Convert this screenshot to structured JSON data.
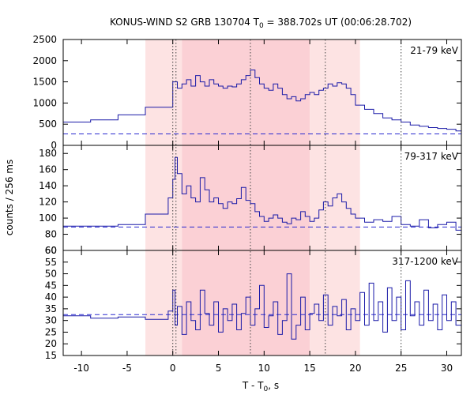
{
  "chart_data": {
    "type": "line",
    "title": {
      "prefix": "KONUS-WIND S2 GRB 130704 T",
      "subscript": "0",
      "suffix": " = 388.702s UT (00:06:28.702)"
    },
    "xlabel": {
      "prefix": "T - T",
      "subscript": "0",
      "suffix": ", s"
    },
    "ylabel": "counts / 256 ms",
    "xlim": [
      -12,
      31.6
    ],
    "x_ticks": [
      -10,
      -5,
      0,
      5,
      10,
      15,
      20,
      25,
      30
    ],
    "x_tick_labels": [
      "-10",
      "-5",
      "0",
      "5",
      "10",
      "15",
      "20",
      "25",
      "30"
    ],
    "colors": {
      "curve": "#1a1aa8",
      "background_level": "#2a2ad0",
      "band_light": "#fde3e3",
      "band_dark": "#fbd0d5",
      "marker_line": "#444444"
    },
    "shaded_intervals": [
      {
        "from": -3.0,
        "to": 1.0,
        "shade": "light"
      },
      {
        "from": 1.0,
        "to": 15.0,
        "shade": "dark"
      },
      {
        "from": 15.0,
        "to": 20.5,
        "shade": "light"
      }
    ],
    "vertical_markers": [
      0.0,
      0.35,
      8.5,
      16.7,
      25.0
    ],
    "panels": [
      {
        "label": "21-79 keV",
        "ylim": [
          0,
          2500
        ],
        "y_ticks": [
          0,
          500,
          1000,
          1500,
          2000,
          2500
        ],
        "y_tick_labels": [
          "0",
          "500",
          "1000",
          "1500",
          "2000",
          "2500"
        ],
        "background": 270,
        "series": {
          "name": "21-79 keV",
          "x": [
            -12,
            -9,
            -6,
            -3,
            0,
            0.5,
            1,
            1.5,
            2,
            2.5,
            3,
            3.5,
            4,
            4.5,
            5,
            5.5,
            6,
            6.5,
            7,
            7.5,
            8,
            8.5,
            9,
            9.5,
            10,
            10.5,
            11,
            11.5,
            12,
            12.5,
            13,
            13.5,
            14,
            14.5,
            15,
            15.5,
            16,
            16.5,
            17,
            17.5,
            18,
            18.5,
            19,
            19.5,
            20,
            21,
            22,
            23,
            24,
            25,
            26,
            27,
            28,
            29,
            30,
            31,
            31.6
          ],
          "y": [
            550,
            600,
            720,
            900,
            1500,
            1350,
            1450,
            1550,
            1400,
            1650,
            1500,
            1400,
            1550,
            1450,
            1400,
            1350,
            1400,
            1380,
            1450,
            1550,
            1650,
            1780,
            1600,
            1450,
            1350,
            1300,
            1450,
            1350,
            1200,
            1100,
            1150,
            1050,
            1100,
            1200,
            1250,
            1200,
            1300,
            1350,
            1450,
            1400,
            1480,
            1450,
            1350,
            1200,
            950,
            850,
            750,
            650,
            600,
            550,
            480,
            450,
            420,
            400,
            380,
            340,
            320
          ]
        }
      },
      {
        "label": "79-317 keV",
        "ylim": [
          60,
          190
        ],
        "y_ticks": [
          60,
          80,
          100,
          120,
          140,
          160,
          180
        ],
        "y_tick_labels": [
          "60",
          "80",
          "100",
          "120",
          "140",
          "160",
          "180"
        ],
        "background": 89,
        "series": {
          "name": "79-317 keV",
          "x": [
            -12,
            -9,
            -6,
            -3,
            -0.5,
            0,
            0.25,
            0.5,
            1,
            1.5,
            2,
            2.5,
            3,
            3.5,
            4,
            4.5,
            5,
            5.5,
            6,
            6.5,
            7,
            7.5,
            8,
            8.5,
            9,
            9.5,
            10,
            10.5,
            11,
            11.5,
            12,
            12.5,
            13,
            13.5,
            14,
            14.5,
            15,
            15.5,
            16,
            16.5,
            17,
            17.5,
            18,
            18.5,
            19,
            19.5,
            20,
            21,
            22,
            23,
            24,
            25,
            26,
            27,
            28,
            29,
            30,
            31
          ],
          "y": [
            90,
            90,
            92,
            105,
            125,
            148,
            175,
            155,
            130,
            140,
            125,
            120,
            150,
            135,
            120,
            125,
            118,
            112,
            120,
            118,
            124,
            138,
            122,
            118,
            108,
            102,
            96,
            100,
            104,
            100,
            95,
            93,
            100,
            98,
            108,
            102,
            96,
            100,
            110,
            120,
            115,
            125,
            130,
            120,
            112,
            105,
            100,
            95,
            98,
            96,
            102,
            92,
            90,
            98,
            88,
            92,
            95,
            85
          ]
        }
      },
      {
        "label": "317-1200 keV",
        "ylim": [
          15,
          60
        ],
        "y_ticks": [
          15,
          20,
          25,
          30,
          35,
          40,
          45,
          50,
          55,
          60
        ],
        "y_tick_labels": [
          "15",
          "20",
          "25",
          "30",
          "35",
          "40",
          "45",
          "50",
          "55",
          "60"
        ],
        "background": 32.5,
        "series": {
          "name": "317-1200 keV",
          "x": [
            -12,
            -9,
            -6,
            -3,
            -0.5,
            0,
            0.25,
            0.5,
            1,
            1.5,
            2,
            2.5,
            3,
            3.5,
            4,
            4.5,
            5,
            5.5,
            6,
            6.5,
            7,
            7.5,
            8,
            8.5,
            9,
            9.5,
            10,
            10.5,
            11,
            11.5,
            12,
            12.5,
            13,
            13.5,
            14,
            14.5,
            15,
            15.5,
            16,
            16.5,
            17,
            17.5,
            18,
            18.5,
            19,
            19.5,
            20,
            20.5,
            21,
            21.5,
            22,
            22.5,
            23,
            23.5,
            24,
            24.5,
            25,
            25.5,
            26,
            26.5,
            27,
            27.5,
            28,
            28.5,
            29,
            29.5,
            30,
            30.5,
            31
          ],
          "y": [
            32,
            31,
            31.5,
            30.5,
            34,
            43,
            28,
            36,
            24,
            38,
            30,
            26,
            43,
            33,
            28,
            38,
            25,
            35,
            30,
            37,
            26,
            33,
            40,
            28,
            35,
            45,
            27,
            32,
            38,
            24,
            30,
            50,
            22,
            28,
            40,
            26,
            33,
            37,
            30,
            41,
            28,
            36,
            32,
            39,
            26,
            35,
            30,
            42,
            28,
            46,
            30,
            38,
            25,
            44,
            30,
            40,
            26,
            47,
            32,
            38,
            28,
            43,
            30,
            37,
            26,
            41,
            30,
            38,
            28
          ]
        }
      }
    ]
  }
}
